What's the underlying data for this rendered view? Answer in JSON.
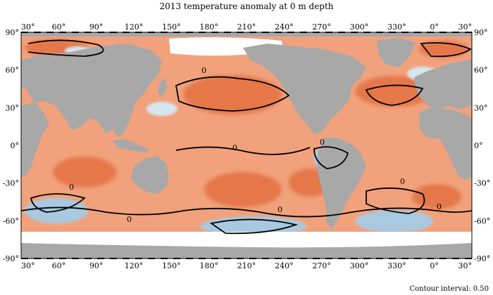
{
  "figure": {
    "title": "2013 temperature anomaly at 0 m depth",
    "contour_note": "Contour interval: 0.50",
    "contour_label": "0"
  },
  "axes": {
    "lon_labels": [
      "30°",
      "60°",
      "90°",
      "120°",
      "150°",
      "180°",
      "210°",
      "240°",
      "270°",
      "300°",
      "330°",
      "0°",
      "30°"
    ],
    "lat_labels": [
      "90°",
      "60°",
      "30°",
      "0°",
      "-30°",
      "-60°",
      "-90°"
    ]
  },
  "colors": {
    "land": "#a8a8a8",
    "ocean_base": "#f1a27c",
    "warm_strong": "#e5774a",
    "cold": "#a9c9e0",
    "cold_light": "#d6e6f1",
    "ice": "#ffffff",
    "contour": "#000000"
  }
}
